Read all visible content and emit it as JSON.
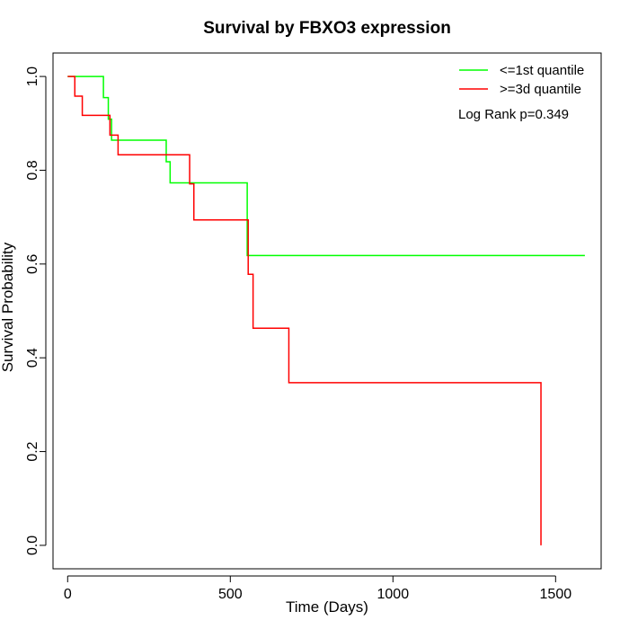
{
  "chart_data": {
    "type": "line",
    "subtype": "kaplan-meier-step",
    "title": "Survival by FBXO3 expression",
    "xlabel": "Time (Days)",
    "ylabel": "Survival Probability",
    "xlim": [
      -45,
      1640
    ],
    "ylim": [
      -0.05,
      1.05
    ],
    "xticks": [
      0,
      500,
      1000,
      1500
    ],
    "yticks": [
      0.0,
      0.2,
      0.4,
      0.6,
      0.8,
      1.0
    ],
    "ytick_labels": [
      "0.0",
      "0.2",
      "0.4",
      "0.6",
      "0.8",
      "1.0"
    ],
    "grid": false,
    "legend_position": "top-right",
    "annotation": "Log Rank p=0.349",
    "series": [
      {
        "name": "<=1st quantile",
        "color": "#00ff00",
        "points": [
          [
            0,
            1.0
          ],
          [
            110,
            1.0
          ],
          [
            110,
            0.955
          ],
          [
            125,
            0.955
          ],
          [
            125,
            0.909
          ],
          [
            135,
            0.909
          ],
          [
            135,
            0.864
          ],
          [
            303,
            0.864
          ],
          [
            303,
            0.818
          ],
          [
            315,
            0.818
          ],
          [
            315,
            0.773
          ],
          [
            552,
            0.773
          ],
          [
            552,
            0.618
          ],
          [
            1590,
            0.618
          ]
        ]
      },
      {
        "name": ">=3d quantile",
        "color": "#ff0000",
        "points": [
          [
            0,
            1.0
          ],
          [
            22,
            1.0
          ],
          [
            22,
            0.958
          ],
          [
            45,
            0.958
          ],
          [
            45,
            0.917
          ],
          [
            130,
            0.917
          ],
          [
            130,
            0.875
          ],
          [
            155,
            0.875
          ],
          [
            155,
            0.833
          ],
          [
            375,
            0.833
          ],
          [
            375,
            0.771
          ],
          [
            388,
            0.771
          ],
          [
            388,
            0.694
          ],
          [
            555,
            0.694
          ],
          [
            555,
            0.578
          ],
          [
            570,
            0.578
          ],
          [
            570,
            0.463
          ],
          [
            680,
            0.463
          ],
          [
            680,
            0.347
          ],
          [
            1455,
            0.347
          ],
          [
            1455,
            0.0
          ]
        ]
      }
    ]
  }
}
